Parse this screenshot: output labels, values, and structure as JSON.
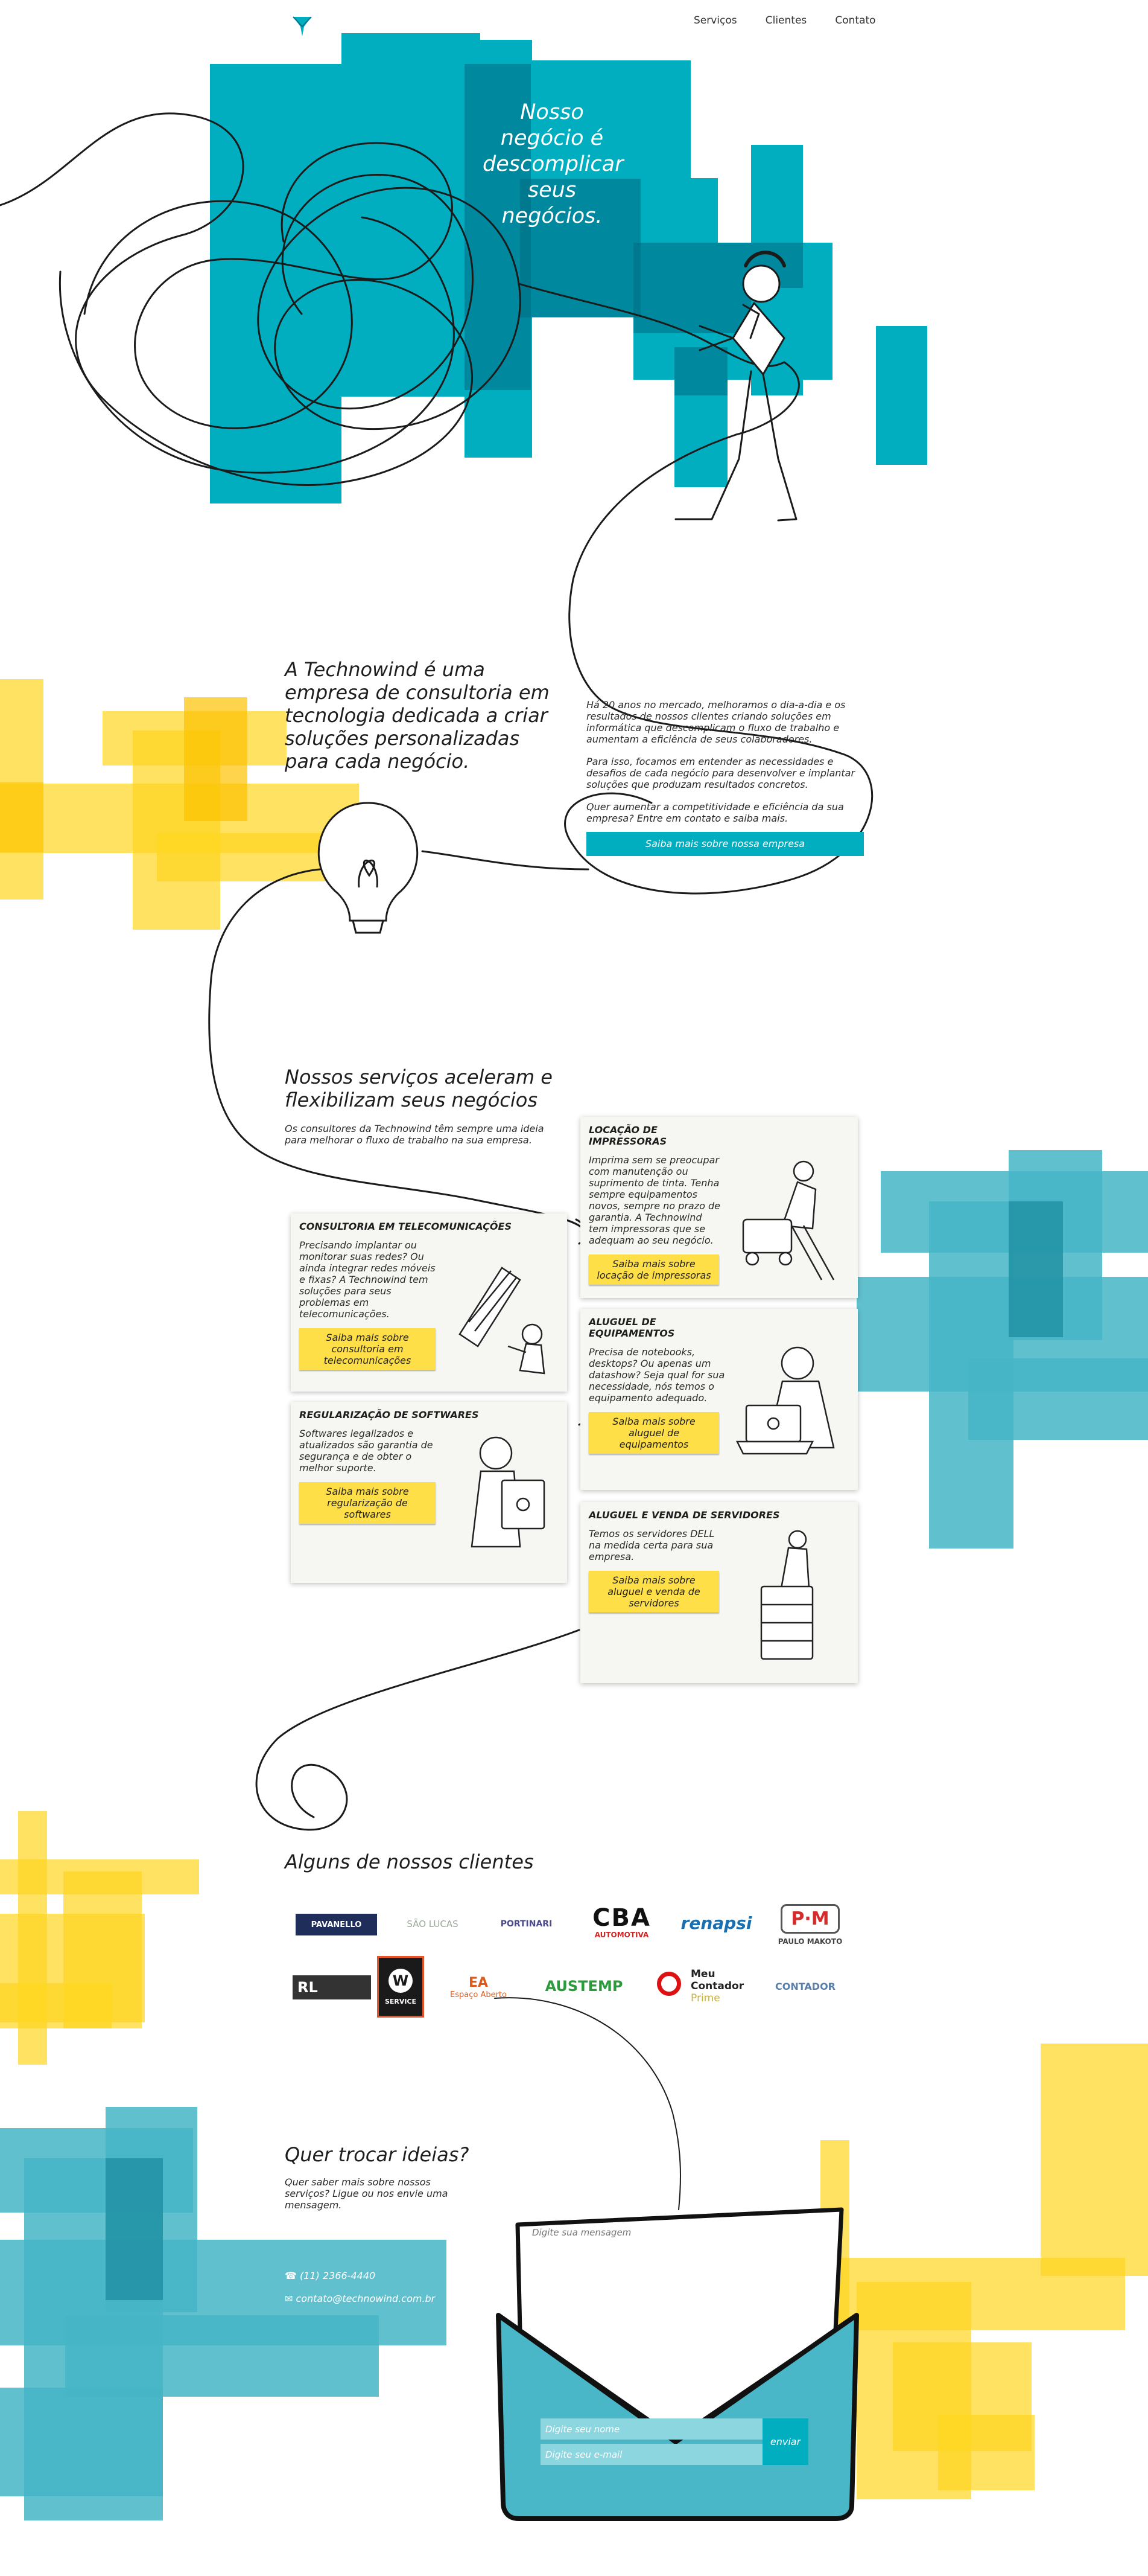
{
  "nav": {
    "items": [
      "Serviços",
      "Clientes",
      "Contato"
    ]
  },
  "hero": {
    "title": "Nosso negócio é descomplicar seus negócios."
  },
  "about": {
    "title": "A Technowind é uma empresa de consultoria em tecnologia dedicada a criar soluções personalizadas para cada negócio.",
    "p1": "Há 20 anos no mercado, melhoramos o dia-a-dia e os resultados de nossos clientes criando soluções em informática que descomplicam o fluxo de trabalho e aumentam a eficiência de seus colaboradores.",
    "p2": "Para isso, focamos em entender as necessidades e desafios de cada negócio para desenvolver e implantar soluções que produzam resultados concretos.",
    "p3": "Quer aumentar a competitividade e eficiência da sua empresa? Entre em contato e saiba mais.",
    "button": "Saiba mais sobre nossa empresa"
  },
  "services": {
    "title": "Nossos serviços aceleram e flexibilizam seus negócios",
    "subtitle": "Os consultores da Technowind têm sempre uma ideia para melhorar o fluxo de trabalho na sua empresa.",
    "cards": [
      {
        "title": "LOCAÇÃO DE IMPRESSORAS",
        "text": "Imprima sem se preocupar com manutenção ou suprimento de tinta. Tenha sempre equipamentos novos, sempre no prazo de garantia. A Technowind tem impressoras que se adequam ao seu negócio.",
        "button": "Saiba mais sobre locação de impressoras"
      },
      {
        "title": "CONSULTORIA EM TELECOMUNICAÇÕES",
        "text": "Precisando implantar ou monitorar suas redes? Ou ainda integrar redes móveis e fixas? A Technowind tem soluções para seus problemas em telecomunicações.",
        "button": "Saiba mais sobre consultoria em telecomunicações"
      },
      {
        "title": "ALUGUEL DE EQUIPAMENTOS",
        "text": "Precisa de notebooks, desktops? Ou apenas um datashow? Seja qual for sua necessidade, nós temos o equipamento adequado.",
        "button": "Saiba mais sobre aluguel de equipamentos"
      },
      {
        "title": "REGULARIZAÇÃO DE SOFTWARES",
        "text": "Softwares legalizados e atualizados são garantia de segurança e de obter o melhor suporte.",
        "button": "Saiba mais sobre regularização de softwares"
      },
      {
        "title": "ALUGUEL E VENDA DE SERVIDORES",
        "text": "Temos os servidores DELL na medida certa para sua empresa.",
        "button": "Saiba mais sobre aluguel e venda de servidores"
      }
    ]
  },
  "clients": {
    "title": "Alguns de nossos clientes",
    "logos": [
      "PAVANELLO",
      "SÃO LUCAS",
      "PORTINARI",
      "CBA",
      "AUTOMOTIVA",
      "renapsi",
      "P·M",
      "PAULO MAKOTO",
      "RL",
      "W",
      "SERVICE",
      "EA",
      "Espaço Aberto",
      "AUSTEMP",
      "Meu Contador",
      "Prime",
      "CONTADOR"
    ]
  },
  "contact": {
    "title": "Quer trocar ideias?",
    "subtitle": "Quer saber mais sobre nossos serviços? Ligue ou nos envie uma mensagem.",
    "phone": "(11) 2366-4440",
    "email": "contato@technowind.com.br",
    "message_placeholder": "Digite sua mensagem",
    "name_placeholder": "Digite seu nome",
    "email_placeholder": "Digite seu e-mail",
    "send": "enviar"
  },
  "colors": {
    "teal": "#00aec0",
    "teal_dark": "#006b82",
    "yellow": "#ffd61f",
    "button_yellow": "#ffdf48"
  }
}
